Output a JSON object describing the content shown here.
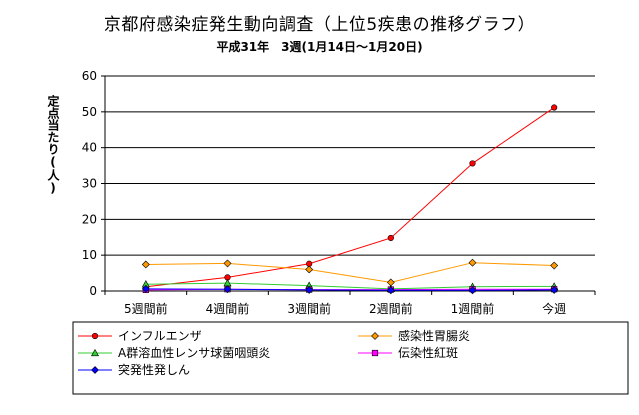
{
  "chart_data": {
    "type": "line",
    "title": "京都府感染症発生動向調査（上位5疾患の推移グラフ）",
    "subtitle": "平成31年　3週(1月14日～1月20日)",
    "ylabel": "定点当たり(人)",
    "xlabel": "",
    "categories": [
      "5週間前",
      "4週間前",
      "3週間前",
      "2週間前",
      "1週間前",
      "今週"
    ],
    "ylim": [
      0,
      60
    ],
    "yticks": [
      0,
      10,
      20,
      30,
      40,
      50,
      60
    ],
    "grid": true,
    "legend_position": "bottom",
    "series": [
      {
        "name": "インフルエンザ",
        "color": "#ff0000",
        "marker": "circle",
        "values": [
          1.2,
          3.8,
          7.6,
          14.8,
          35.6,
          51.2
        ]
      },
      {
        "name": "感染性胃腸炎",
        "color": "#ff9900",
        "marker": "diamond",
        "values": [
          7.4,
          7.7,
          6.0,
          2.4,
          7.9,
          7.1
        ]
      },
      {
        "name": "A群溶血性レンサ球菌咽頭炎",
        "color": "#33cc33",
        "marker": "triangle",
        "values": [
          1.9,
          2.2,
          1.5,
          0.6,
          1.2,
          1.3
        ]
      },
      {
        "name": "伝染性紅斑",
        "color": "#ff00ff",
        "marker": "square",
        "values": [
          0.3,
          0.5,
          0.4,
          0.4,
          0.5,
          0.5
        ]
      },
      {
        "name": "突発性発しん",
        "color": "#0000ff",
        "marker": "diamond",
        "values": [
          0.6,
          0.5,
          0.3,
          0.2,
          0.2,
          0.3
        ]
      }
    ]
  }
}
